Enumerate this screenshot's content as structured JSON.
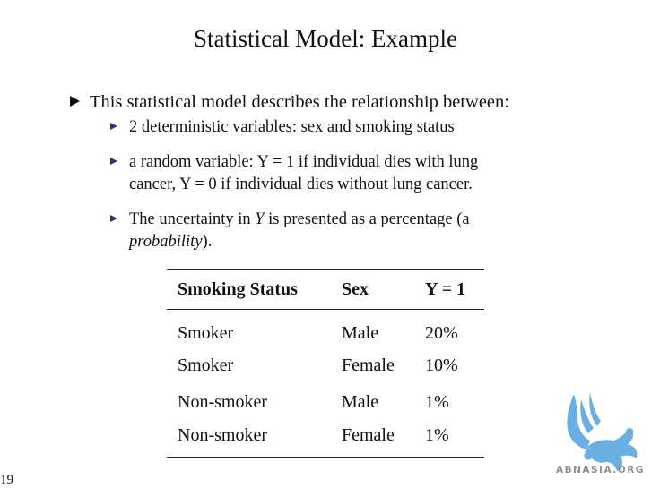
{
  "slide": {
    "title": "Statistical Model: Example",
    "page_number": "19"
  },
  "bullets": {
    "main": "This statistical model describes the relationship between:",
    "sub": [
      {
        "text": "2 deterministic variables: sex and smoking status"
      },
      {
        "line1": "a random variable: Y = 1 if individual dies with lung",
        "line2": "cancer, Y = 0 if individual dies without lung cancer."
      },
      {
        "line1_pre": "The uncertainty in ",
        "line1_var": "Y",
        "line1_post": " is presented as a percentage (a",
        "line2_ital": "probability",
        "line2_post": ")."
      }
    ]
  },
  "table": {
    "headers": [
      "Smoking Status",
      "Sex",
      "Y = 1"
    ],
    "rows": [
      [
        "Smoker",
        "Male",
        "20%"
      ],
      [
        "Smoker",
        "Female",
        "10%"
      ],
      [
        "Non-smoker",
        "Male",
        "1%"
      ],
      [
        "Non-smoker",
        "Female",
        "1%"
      ]
    ]
  },
  "watermark": {
    "text": "ABNASIA.ORG",
    "icon": "griffin-logo-icon",
    "color": "#5aa7df"
  }
}
